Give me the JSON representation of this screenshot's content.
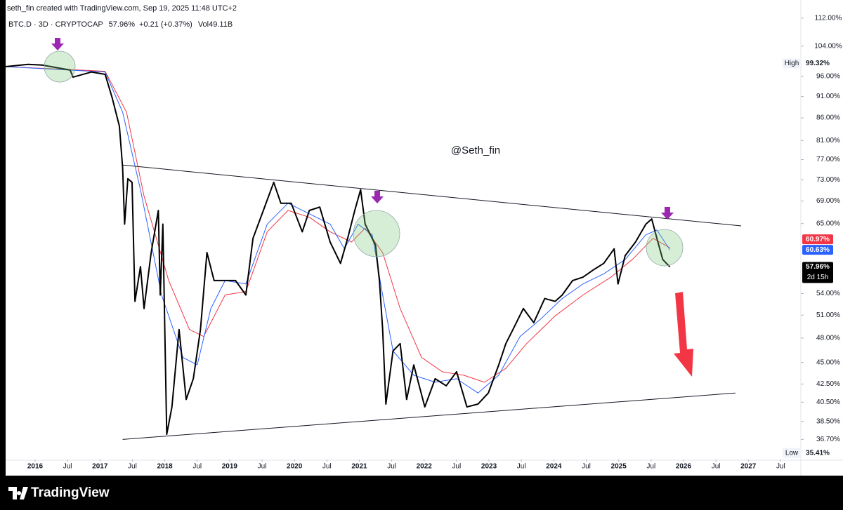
{
  "chart_data": {
    "type": "line",
    "title": "seth_fin created with TradingView.com, Sep 19, 2025 11:48 UTC+2",
    "symbol": "BTC.D · 3D · CRYPTOCAP",
    "last": "57.96%",
    "change": "+0.21 (+0.37%)",
    "volume": "Vol49.11B",
    "watermark": "@Seth_fin",
    "logo": "TradingView",
    "log_scale": true,
    "grid": false,
    "xlim": [
      2015.545,
      2027.81
    ],
    "ylim": [
      34.8,
      112.8
    ],
    "yticks": [
      {
        "value": 112,
        "label": "112.00%"
      },
      {
        "value": 104,
        "label": "104.00%"
      },
      {
        "value": 96,
        "label": "96.00%"
      },
      {
        "value": 91,
        "label": "91.00%"
      },
      {
        "value": 86,
        "label": "86.00%"
      },
      {
        "value": 81,
        "label": "81.00%"
      },
      {
        "value": 77,
        "label": "77.00%"
      },
      {
        "value": 73,
        "label": "73.00%"
      },
      {
        "value": 69,
        "label": "69.00%"
      },
      {
        "value": 65,
        "label": "65.00%"
      },
      {
        "value": 54,
        "label": "54.00%"
      },
      {
        "value": 51,
        "label": "51.00%"
      },
      {
        "value": 48,
        "label": "48.00%"
      },
      {
        "value": 45,
        "label": "45.00%"
      },
      {
        "value": 42.5,
        "label": "42.50%"
      },
      {
        "value": 40.5,
        "label": "40.50%"
      },
      {
        "value": 38.5,
        "label": "38.50%"
      },
      {
        "value": 36.7,
        "label": "36.70%"
      }
    ],
    "xticks": [
      2016,
      {
        "value": 2016.5,
        "label": "Jul"
      },
      2017,
      {
        "value": 2017.5,
        "label": "Jul"
      },
      2018,
      {
        "value": 2018.5,
        "label": "Jul"
      },
      2019,
      {
        "value": 2019.5,
        "label": "Jul"
      },
      2020,
      {
        "value": 2020.5,
        "label": "Jul"
      },
      2021,
      {
        "value": 2021.5,
        "label": "Jul"
      },
      2022,
      {
        "value": 2022.5,
        "label": "Jul"
      },
      2023,
      {
        "value": 2023.5,
        "label": "Jul"
      },
      2024,
      {
        "value": 2024.5,
        "label": "Jul"
      },
      2025,
      {
        "value": 2025.5,
        "label": "Jul"
      },
      2026,
      {
        "value": 2026.5,
        "label": "Jul"
      },
      2027,
      {
        "value": 2027.5,
        "label": "Jul"
      }
    ],
    "series": [
      {
        "color": "#000000",
        "x": [
          2015.545,
          2015.89,
          2016.11,
          2016.54,
          2016.585,
          2016.867,
          2017.08,
          2017.19,
          2017.3,
          2017.35,
          2017.38,
          2017.43,
          2017.495,
          2017.54,
          2017.625,
          2017.68,
          2017.79,
          2017.9,
          2017.93,
          2017.97,
          2018.03,
          2018.11,
          2018.22,
          2018.33,
          2018.44,
          2018.55,
          2018.65,
          2018.76,
          2018.93,
          2019.09,
          2019.25,
          2019.36,
          2019.52,
          2019.68,
          2019.79,
          2019.95,
          2020.12,
          2020.23,
          2020.39,
          2020.55,
          2020.71,
          2020.82,
          2020.93,
          2021.02,
          2021.09,
          2021.25,
          2021.31,
          2021.36,
          2021.41,
          2021.52,
          2021.63,
          2021.73,
          2021.84,
          2022.01,
          2022.17,
          2022.34,
          2022.5,
          2022.66,
          2022.83,
          2022.99,
          2023.15,
          2023.26,
          2023.37,
          2023.53,
          2023.69,
          2023.86,
          2024.02,
          2024.13,
          2024.29,
          2024.45,
          2024.61,
          2024.77,
          2024.93,
          2024.99,
          2025.1,
          2025.26,
          2025.42,
          2025.51,
          2025.59,
          2025.68,
          2025.79
        ],
        "values": [
          98.5,
          99.1,
          98.9,
          97.6,
          95.8,
          97.1,
          96.5,
          90.6,
          84.1,
          75.3,
          64.9,
          73.2,
          72.5,
          52.9,
          58.0,
          51.9,
          60.2,
          67.3,
          53.8,
          64.9,
          37.2,
          40.0,
          49.1,
          40.8,
          43.1,
          49.1,
          60.2,
          55.9,
          55.9,
          55.9,
          53.8,
          62.5,
          67.3,
          72.5,
          68.6,
          68.6,
          63.6,
          67.3,
          67.9,
          61.9,
          58.5,
          62.5,
          67.3,
          71.1,
          64.9,
          61.4,
          55.9,
          49.1,
          40.3,
          46.4,
          47.3,
          40.8,
          44.7,
          40.0,
          43.1,
          42.3,
          43.9,
          40.0,
          40.3,
          41.5,
          44.7,
          47.3,
          49.1,
          51.9,
          50.0,
          53.3,
          52.9,
          53.8,
          55.9,
          56.4,
          57.5,
          58.5,
          60.8,
          55.4,
          59.7,
          61.9,
          64.9,
          65.8,
          62.5,
          59.1,
          57.96
        ]
      },
      {
        "color": "#2962ff",
        "x": [
          2015.545,
          2017.08,
          2017.35,
          2017.625,
          2017.95,
          2018.28,
          2018.5,
          2018.71,
          2018.93,
          2019.25,
          2019.58,
          2019.9,
          2020.23,
          2020.55,
          2020.77,
          2020.98,
          2021.2,
          2021.36,
          2021.52,
          2021.84,
          2022.17,
          2022.5,
          2022.83,
          2023.15,
          2023.48,
          2023.8,
          2024.13,
          2024.45,
          2024.77,
          2025.1,
          2025.42,
          2025.59,
          2025.79
        ],
        "values": [
          98.5,
          97.1,
          87.3,
          71.1,
          53.8,
          45.6,
          44.7,
          51.9,
          55.9,
          55.4,
          64.9,
          68.6,
          66.7,
          64.9,
          60.8,
          64.9,
          63.1,
          53.8,
          46.4,
          43.5,
          42.7,
          43.1,
          41.5,
          43.5,
          48.2,
          50.5,
          53.3,
          55.4,
          56.9,
          59.1,
          63.1,
          63.9,
          60.63
        ]
      },
      {
        "color": "#f23645",
        "x": [
          2015.545,
          2017.08,
          2017.41,
          2017.68,
          2018.06,
          2018.38,
          2018.6,
          2018.93,
          2019.25,
          2019.58,
          2019.9,
          2020.23,
          2020.55,
          2020.88,
          2021.09,
          2021.36,
          2021.63,
          2021.96,
          2022.28,
          2022.61,
          2022.93,
          2023.26,
          2023.58,
          2024.02,
          2024.45,
          2024.88,
          2025.21,
          2025.53,
          2025.79
        ],
        "values": [
          98.5,
          97.3,
          87.3,
          69.9,
          55.9,
          49.1,
          48.2,
          53.8,
          54.3,
          63.6,
          67.3,
          66.1,
          63.6,
          61.9,
          64.2,
          60.2,
          51.9,
          45.6,
          43.9,
          43.5,
          42.7,
          44.3,
          47.3,
          50.9,
          53.8,
          56.4,
          59.1,
          62.5,
          60.97
        ]
      }
    ],
    "trendlines": [
      {
        "x": [
          2017.35,
          2026.89
        ],
        "values": [
          75.9,
          64.6
        ]
      },
      {
        "x": [
          2017.35,
          2026.8
        ],
        "values": [
          36.7,
          41.5
        ]
      }
    ],
    "price_labels": [
      {
        "tag": "High",
        "value": 99.32,
        "label": "99.32%",
        "color": "#ffffff"
      },
      {
        "value": 60.97,
        "label": "60.97%",
        "color": "#f23645"
      },
      {
        "value": 60.63,
        "label": "60.63%",
        "color": "#2962ff"
      },
      {
        "value": 57.96,
        "label": "57.96%",
        "sub": "2d 15h",
        "color": "#000000"
      },
      {
        "tag": "Low",
        "value": 35.41,
        "label": "35.41%",
        "color": "#ffffff"
      }
    ]
  }
}
